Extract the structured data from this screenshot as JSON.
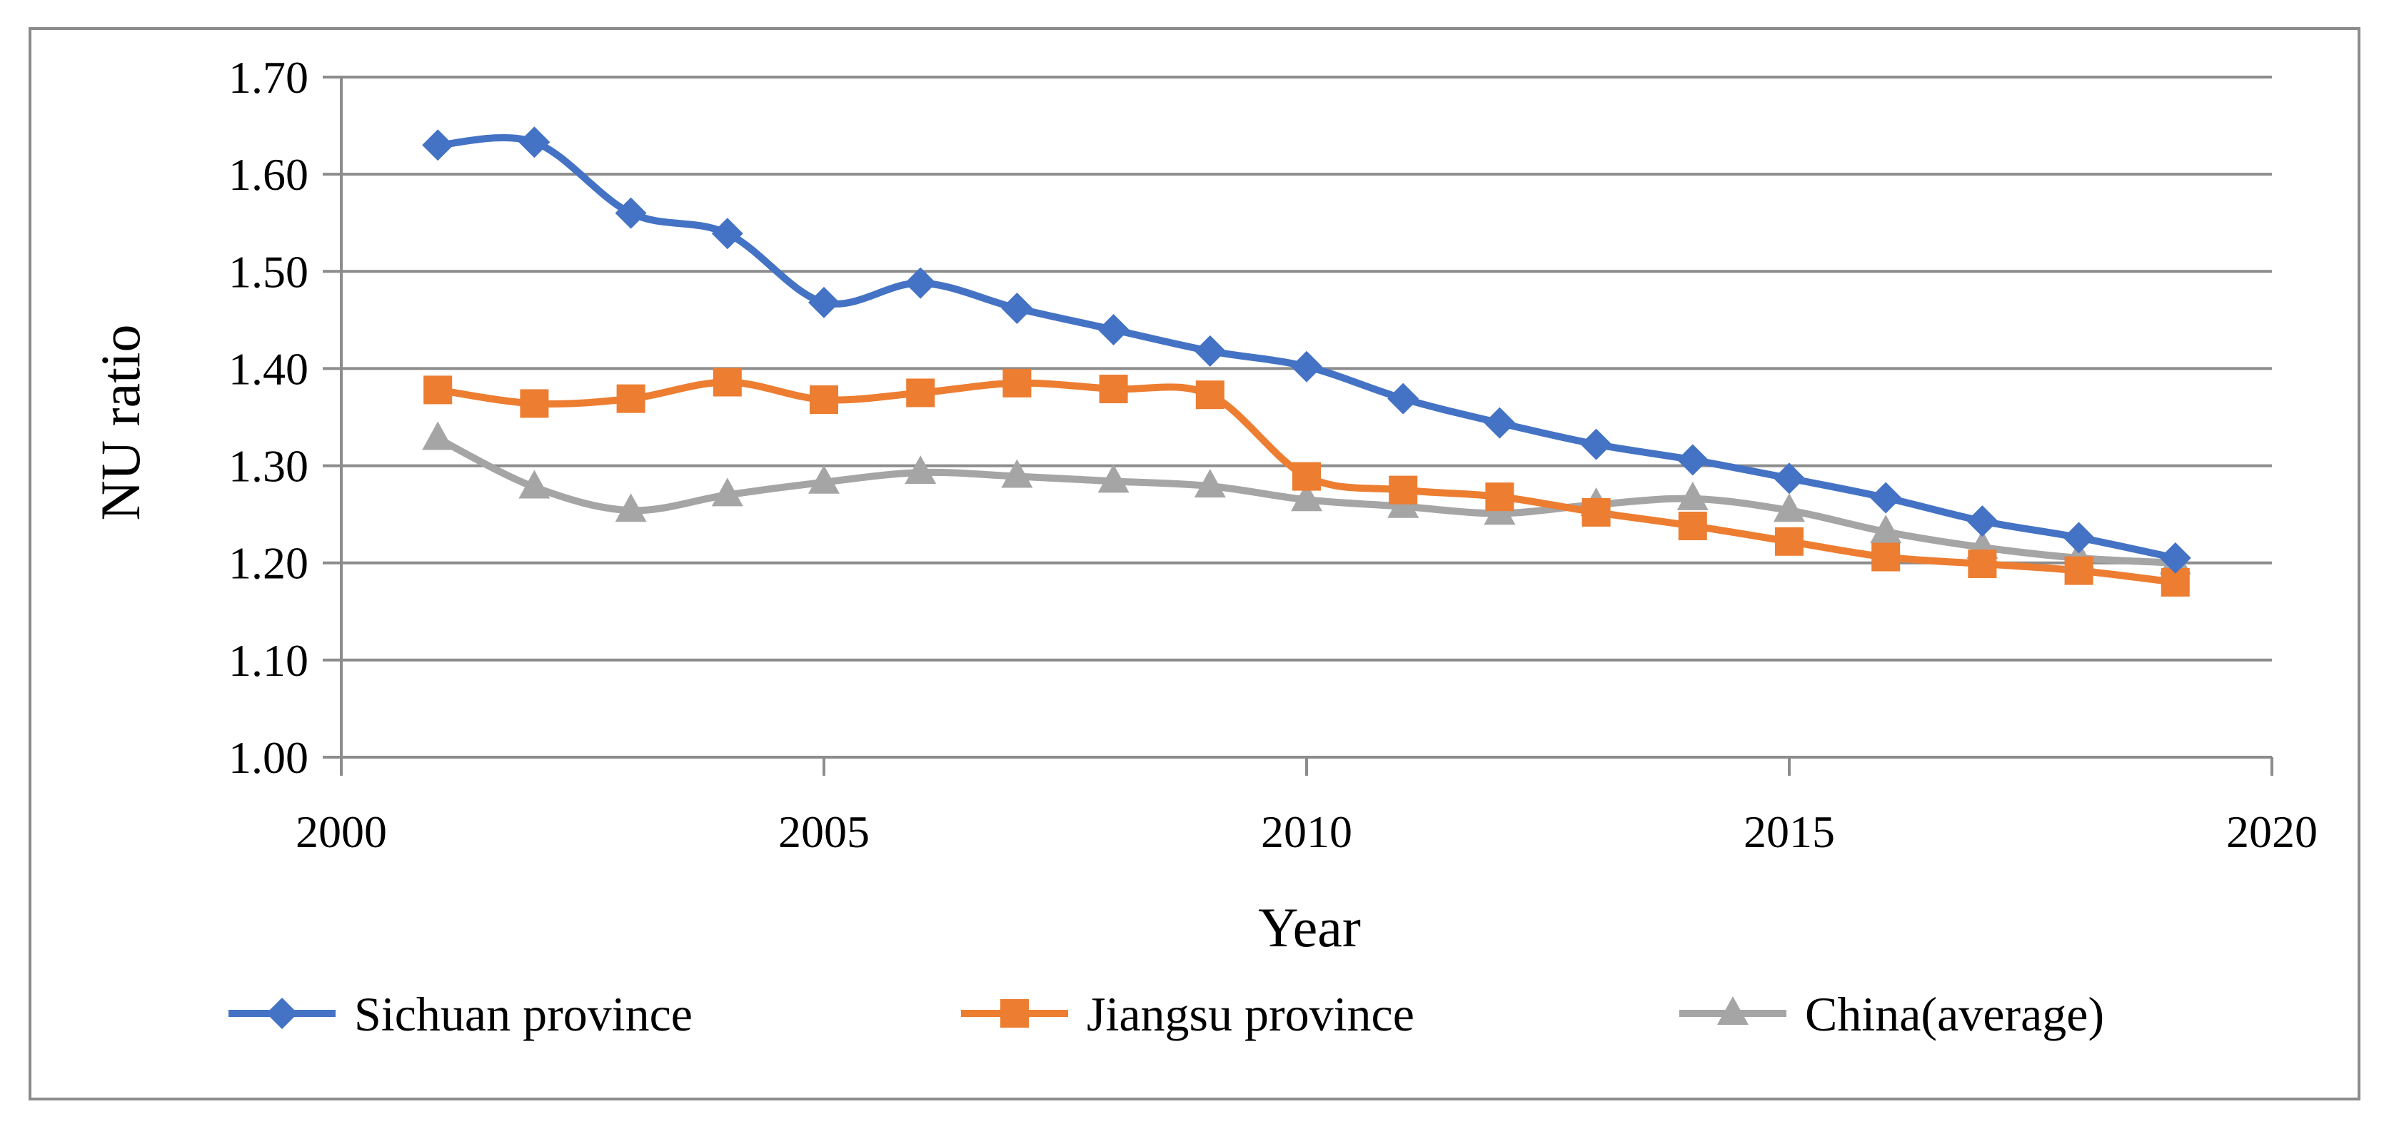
{
  "chart_data": {
    "type": "line",
    "title": "",
    "xlabel": "Year",
    "ylabel": "NU ratio",
    "xlim": [
      2000,
      2020
    ],
    "ylim": [
      1.0,
      1.7
    ],
    "x_ticks": [
      "2000",
      "2005",
      "2010",
      "2015",
      "2020"
    ],
    "y_ticks": [
      "1.00",
      "1.10",
      "1.20",
      "1.30",
      "1.40",
      "1.50",
      "1.60",
      "1.70"
    ],
    "grid": "horizontal",
    "legend_position": "bottom",
    "x": [
      2001,
      2002,
      2003,
      2004,
      2005,
      2006,
      2007,
      2008,
      2009,
      2010,
      2011,
      2012,
      2013,
      2014,
      2015,
      2016,
      2017,
      2018,
      2019
    ],
    "series": [
      {
        "name": "Sichuan province",
        "color": "#4472C4",
        "marker": "diamond",
        "values": [
          1.63,
          1.633,
          1.56,
          1.539,
          1.468,
          1.488,
          1.462,
          1.44,
          1.418,
          1.402,
          1.369,
          1.344,
          1.322,
          1.306,
          1.287,
          1.267,
          1.243,
          1.226,
          1.205
        ]
      },
      {
        "name": "Jiangsu province",
        "color": "#ED7D31",
        "marker": "square",
        "values": [
          1.378,
          1.364,
          1.369,
          1.386,
          1.368,
          1.375,
          1.385,
          1.379,
          1.373,
          1.289,
          1.275,
          1.268,
          1.252,
          1.238,
          1.222,
          1.206,
          1.199,
          1.192,
          1.18
        ]
      },
      {
        "name": "China(average)",
        "color": "#A5A5A5",
        "marker": "triangle",
        "values": [
          1.328,
          1.278,
          1.254,
          1.27,
          1.283,
          1.293,
          1.289,
          1.284,
          1.279,
          1.265,
          1.258,
          1.251,
          1.26,
          1.266,
          1.254,
          1.232,
          1.216,
          1.205,
          1.2
        ]
      }
    ]
  }
}
